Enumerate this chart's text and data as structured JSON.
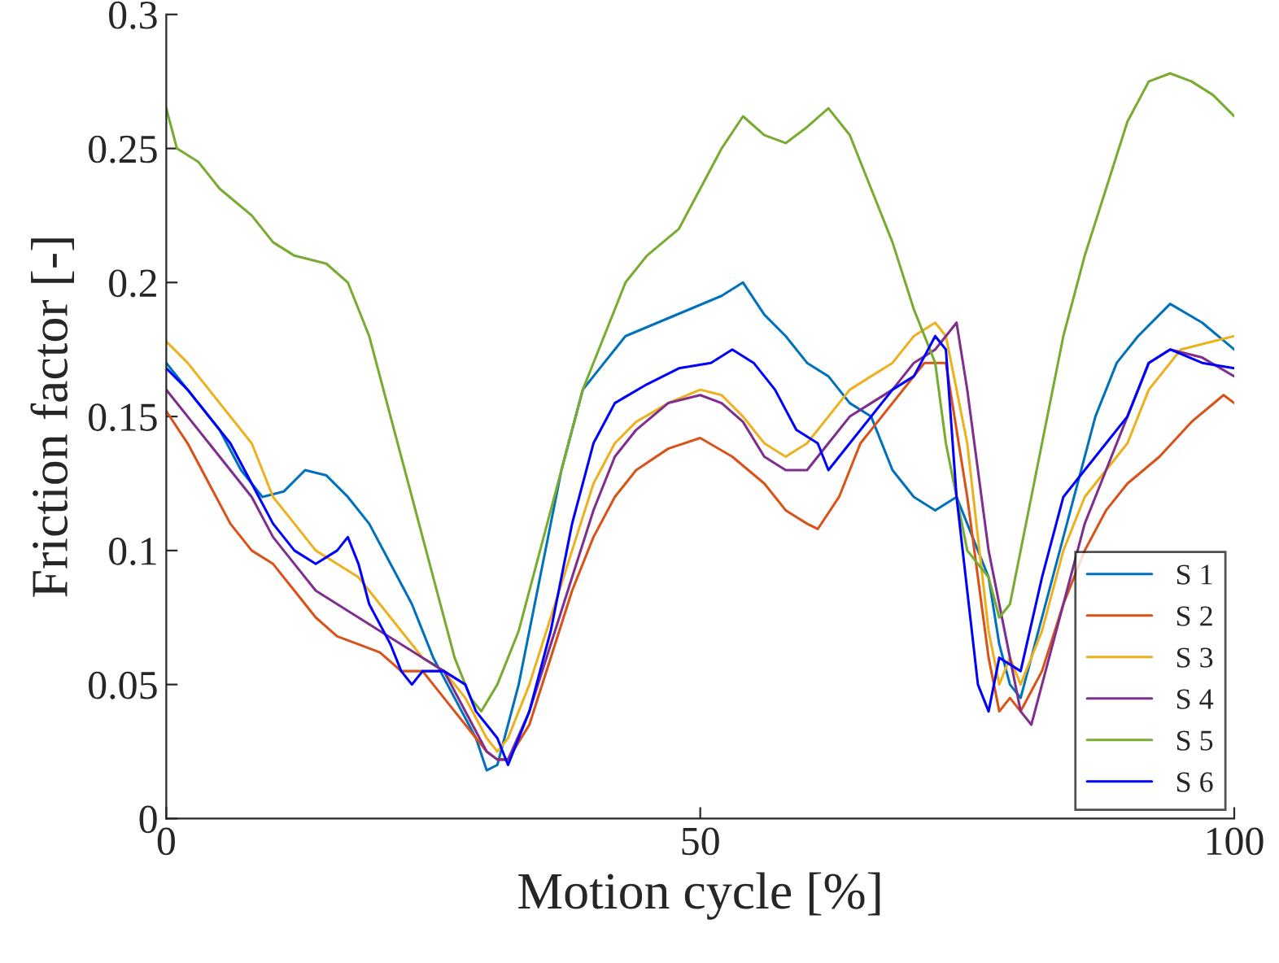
{
  "chart_data": {
    "type": "line",
    "xlabel": "Motion cycle [%]",
    "ylabel": "Friction factor [-]",
    "xlim": [
      0,
      100
    ],
    "ylim": [
      0,
      0.3
    ],
    "xticks": [
      0,
      50,
      100
    ],
    "yticks": [
      0,
      0.05,
      0.1,
      0.15,
      0.2,
      0.25,
      0.3
    ],
    "grid": false,
    "legend": "bottom right",
    "line_style": "solid",
    "marker": "none",
    "series": [
      {
        "name": "S 1",
        "color": "#0072bd",
        "x": [
          0,
          3,
          5,
          7,
          9,
          11,
          13,
          15,
          17,
          19,
          21,
          23,
          25,
          27,
          29,
          30,
          31,
          33,
          35,
          37,
          39,
          41,
          43,
          46,
          49,
          52,
          54,
          56,
          58,
          60,
          62,
          64,
          66,
          68,
          70,
          72,
          74,
          76,
          77,
          78,
          79,
          80,
          81,
          83,
          85,
          87,
          89,
          91,
          94,
          97,
          100
        ],
        "values": [
          0.17,
          0.155,
          0.145,
          0.13,
          0.12,
          0.122,
          0.13,
          0.128,
          0.12,
          0.11,
          0.095,
          0.08,
          0.06,
          0.045,
          0.03,
          0.018,
          0.02,
          0.05,
          0.09,
          0.13,
          0.16,
          0.17,
          0.18,
          0.185,
          0.19,
          0.195,
          0.2,
          0.188,
          0.18,
          0.17,
          0.165,
          0.155,
          0.15,
          0.13,
          0.12,
          0.115,
          0.12,
          0.1,
          0.09,
          0.065,
          0.05,
          0.045,
          0.06,
          0.09,
          0.12,
          0.15,
          0.17,
          0.18,
          0.192,
          0.185,
          0.175
        ]
      },
      {
        "name": "S 2",
        "color": "#d95319",
        "x": [
          0,
          2,
          4,
          6,
          8,
          10,
          12,
          14,
          16,
          18,
          20,
          22,
          24,
          26,
          28,
          30,
          31,
          32,
          34,
          36,
          38,
          40,
          42,
          44,
          47,
          50,
          53,
          56,
          58,
          60,
          61,
          63,
          65,
          67,
          69,
          71,
          73,
          75,
          77,
          78,
          79,
          80,
          82,
          84,
          86,
          88,
          90,
          93,
          96,
          99,
          100
        ],
        "values": [
          0.152,
          0.14,
          0.125,
          0.11,
          0.1,
          0.095,
          0.085,
          0.075,
          0.068,
          0.065,
          0.062,
          0.055,
          0.055,
          0.045,
          0.035,
          0.025,
          0.022,
          0.022,
          0.035,
          0.06,
          0.085,
          0.105,
          0.12,
          0.13,
          0.138,
          0.142,
          0.135,
          0.125,
          0.115,
          0.11,
          0.108,
          0.12,
          0.14,
          0.15,
          0.16,
          0.17,
          0.17,
          0.12,
          0.06,
          0.04,
          0.045,
          0.04,
          0.055,
          0.08,
          0.1,
          0.115,
          0.125,
          0.135,
          0.148,
          0.158,
          0.155
        ]
      },
      {
        "name": "S 3",
        "color": "#edb120",
        "x": [
          0,
          2,
          4,
          6,
          8,
          10,
          12,
          14,
          16,
          18,
          20,
          22,
          24,
          26,
          28,
          30,
          31,
          32,
          34,
          36,
          38,
          40,
          42,
          44,
          47,
          50,
          52,
          54,
          56,
          58,
          60,
          62,
          64,
          66,
          68,
          70,
          72,
          73,
          75,
          77,
          78,
          79,
          80,
          82,
          84,
          86,
          88,
          90,
          92,
          95,
          98,
          100
        ],
        "values": [
          0.178,
          0.17,
          0.16,
          0.15,
          0.14,
          0.12,
          0.11,
          0.1,
          0.095,
          0.09,
          0.08,
          0.07,
          0.06,
          0.055,
          0.045,
          0.03,
          0.025,
          0.03,
          0.05,
          0.075,
          0.1,
          0.125,
          0.14,
          0.148,
          0.155,
          0.16,
          0.158,
          0.15,
          0.14,
          0.135,
          0.14,
          0.15,
          0.16,
          0.165,
          0.17,
          0.18,
          0.185,
          0.18,
          0.14,
          0.07,
          0.05,
          0.06,
          0.05,
          0.07,
          0.1,
          0.12,
          0.13,
          0.14,
          0.16,
          0.175,
          0.178,
          0.18
        ]
      },
      {
        "name": "S 4",
        "color": "#7e2f8e",
        "x": [
          0,
          2,
          4,
          6,
          8,
          10,
          12,
          14,
          16,
          18,
          20,
          22,
          24,
          26,
          28,
          30,
          31,
          32,
          34,
          36,
          38,
          40,
          42,
          44,
          47,
          50,
          52,
          54,
          56,
          58,
          60,
          62,
          64,
          66,
          68,
          70,
          72,
          74,
          75,
          77,
          78,
          79,
          80,
          81,
          82,
          84,
          86,
          88,
          90,
          92,
          94,
          97,
          100
        ],
        "values": [
          0.16,
          0.15,
          0.14,
          0.13,
          0.12,
          0.105,
          0.095,
          0.085,
          0.08,
          0.075,
          0.07,
          0.065,
          0.06,
          0.055,
          0.04,
          0.025,
          0.022,
          0.022,
          0.04,
          0.065,
          0.09,
          0.115,
          0.135,
          0.145,
          0.155,
          0.158,
          0.155,
          0.148,
          0.135,
          0.13,
          0.13,
          0.14,
          0.15,
          0.155,
          0.16,
          0.17,
          0.175,
          0.185,
          0.16,
          0.1,
          0.08,
          0.06,
          0.04,
          0.035,
          0.05,
          0.08,
          0.11,
          0.13,
          0.15,
          0.17,
          0.175,
          0.172,
          0.165
        ]
      },
      {
        "name": "S 5",
        "color": "#77ac30",
        "x": [
          0,
          1,
          3,
          5,
          8,
          10,
          12,
          15,
          17,
          19,
          21,
          23,
          25,
          27,
          28.5,
          29.5,
          31,
          33,
          35,
          37,
          39,
          41,
          43,
          45,
          48,
          50,
          52,
          54,
          56,
          58,
          60,
          62,
          64,
          66,
          68,
          70,
          72,
          73,
          75,
          77,
          78,
          79,
          80,
          82,
          84,
          86,
          88,
          90,
          92,
          94,
          96,
          98,
          100
        ],
        "values": [
          0.265,
          0.25,
          0.245,
          0.235,
          0.225,
          0.215,
          0.21,
          0.207,
          0.2,
          0.18,
          0.15,
          0.12,
          0.09,
          0.06,
          0.045,
          0.04,
          0.05,
          0.07,
          0.1,
          0.13,
          0.16,
          0.18,
          0.2,
          0.21,
          0.22,
          0.235,
          0.25,
          0.262,
          0.255,
          0.252,
          0.258,
          0.265,
          0.255,
          0.235,
          0.215,
          0.19,
          0.17,
          0.14,
          0.1,
          0.09,
          0.075,
          0.08,
          0.1,
          0.14,
          0.18,
          0.21,
          0.235,
          0.26,
          0.275,
          0.278,
          0.275,
          0.27,
          0.262
        ]
      },
      {
        "name": "S 6",
        "color": "#0000ff",
        "x": [
          0,
          2,
          4,
          6,
          8,
          10,
          12,
          14,
          16,
          17,
          18,
          19,
          21,
          22,
          23,
          24,
          26,
          28,
          29,
          30,
          31,
          32,
          34,
          36,
          38,
          40,
          42,
          45,
          48,
          51,
          53,
          55,
          57,
          59,
          61,
          62,
          64,
          66,
          68,
          70,
          72,
          73,
          74,
          76,
          77,
          78,
          80,
          82,
          84,
          86,
          88,
          90,
          92,
          94,
          97,
          100
        ],
        "values": [
          0.168,
          0.16,
          0.15,
          0.14,
          0.125,
          0.11,
          0.1,
          0.095,
          0.1,
          0.105,
          0.095,
          0.08,
          0.065,
          0.055,
          0.05,
          0.055,
          0.055,
          0.05,
          0.04,
          0.035,
          0.03,
          0.02,
          0.04,
          0.07,
          0.11,
          0.14,
          0.155,
          0.162,
          0.168,
          0.17,
          0.175,
          0.17,
          0.16,
          0.145,
          0.14,
          0.13,
          0.14,
          0.15,
          0.16,
          0.165,
          0.18,
          0.175,
          0.12,
          0.05,
          0.04,
          0.06,
          0.055,
          0.09,
          0.12,
          0.13,
          0.14,
          0.15,
          0.17,
          0.175,
          0.17,
          0.168
        ]
      }
    ]
  }
}
